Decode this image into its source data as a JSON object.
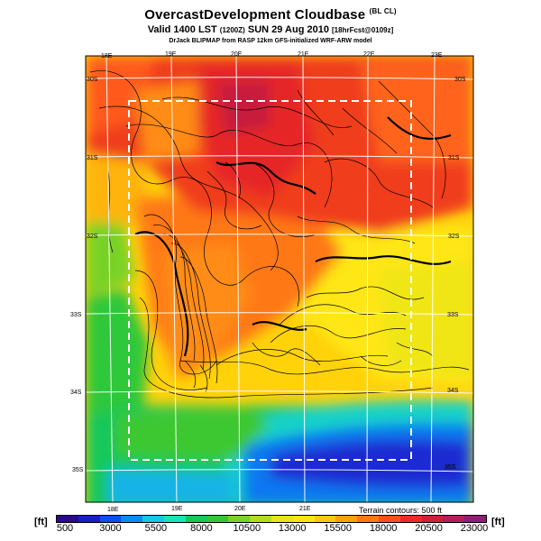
{
  "title": "OvercastDevelopment Cloudbase",
  "title_suffix": "(BL CL)",
  "valid_prefix": "Valid 1400 LST",
  "valid_z": "(1200Z)",
  "valid_date": "SUN 29 Aug 2010",
  "valid_suffix": "[18hrFcst@0109z]",
  "credit": "DrJack BLIPMAP from RASP 12km GFS-initialized WRF-ARW model",
  "lon_labels_top": [
    "18E",
    "19E",
    "20E",
    "21E",
    "22E",
    "23E"
  ],
  "lon_labels_bottom": [
    "18E",
    "19E",
    "20E",
    "21E"
  ],
  "lat_labels_left": [
    "30S",
    "31S",
    "32S",
    "33S",
    "34S",
    "35S"
  ],
  "lat_labels_right": [
    "30S",
    "31S",
    "32S",
    "33S",
    "34S",
    "35S"
  ],
  "terrain_note": "Terrain contours: 500 ft",
  "colorbar": {
    "unit_left": "[ft]",
    "unit_right": "[ft]",
    "tick_labels": [
      "500",
      "3000",
      "5500",
      "8000",
      "10500",
      "13000",
      "15500",
      "18000",
      "20500",
      "23000"
    ],
    "colors": [
      "#2a0a8c",
      "#1a1ec8",
      "#0a4ef0",
      "#0a8cf0",
      "#14c8e6",
      "#14e6b4",
      "#14c85a",
      "#32c832",
      "#78d228",
      "#b4dc1e",
      "#e6e614",
      "#ffe60a",
      "#ffc80a",
      "#ffa00a",
      "#ff7814",
      "#ff501e",
      "#f02828",
      "#d21e3c",
      "#b41e5a",
      "#8c1e78"
    ]
  }
}
